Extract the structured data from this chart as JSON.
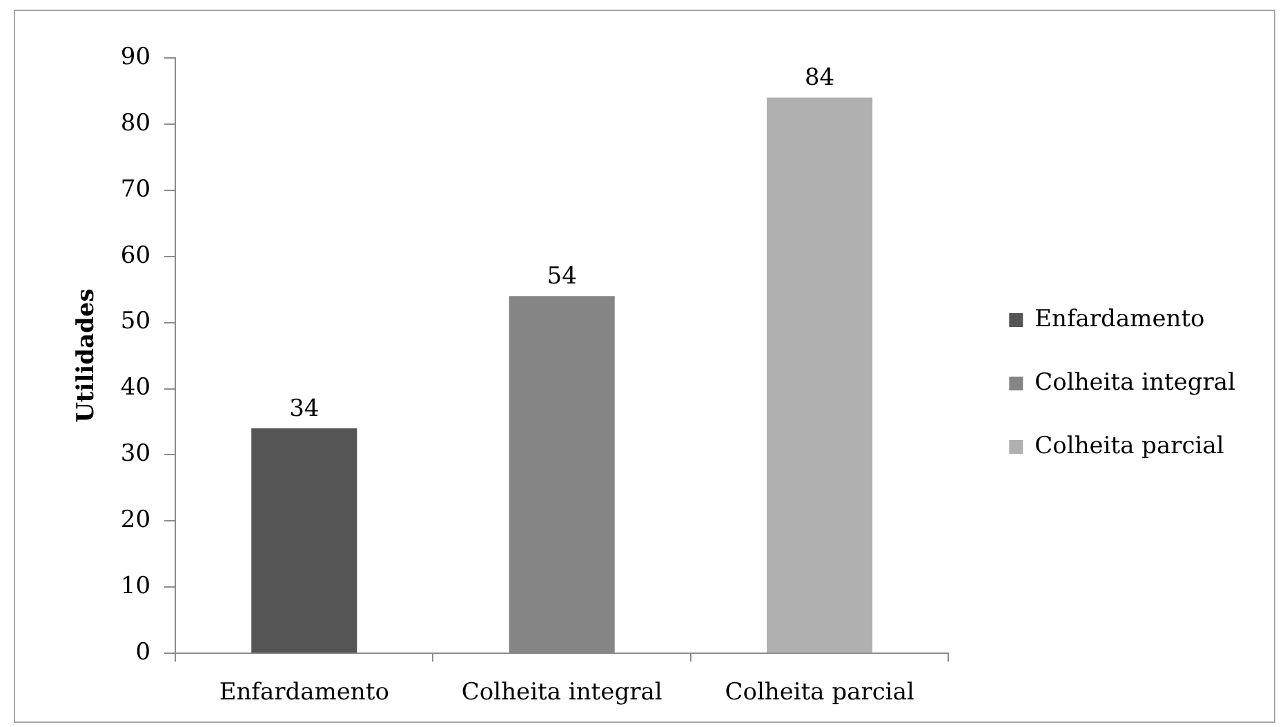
{
  "chart_data": {
    "type": "bar",
    "ylabel": "Utilidades",
    "categories": [
      "Enfardamento",
      "Colheita integral",
      "Colheita parcial"
    ],
    "series": [
      {
        "name": "Enfardamento",
        "color": "#555555",
        "values": [
          34,
          null,
          null
        ]
      },
      {
        "name": "Colheita integral",
        "color": "#858585",
        "values": [
          null,
          54,
          null
        ]
      },
      {
        "name": "Colheita parcial",
        "color": "#b0b0b0",
        "values": [
          null,
          null,
          84
        ]
      }
    ],
    "ylim": [
      0,
      90
    ],
    "yticks": [
      0,
      10,
      20,
      30,
      40,
      50,
      60,
      70,
      80,
      90
    ],
    "data_labels": true,
    "legend": "right"
  }
}
